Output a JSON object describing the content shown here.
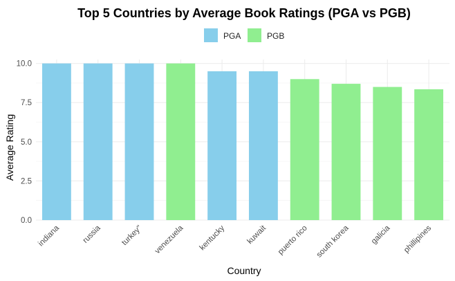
{
  "chart_data": {
    "type": "bar",
    "title": "Top 5 Countries by Average Book Ratings (PGA vs PGB)",
    "xlabel": "Country",
    "ylabel": "Average Rating",
    "ylim": [
      0,
      10.25
    ],
    "yticks": [
      "0.0",
      "2.5",
      "5.0",
      "7.5",
      "10.0"
    ],
    "ytick_values": [
      0,
      2.5,
      5,
      7.5,
      10
    ],
    "grid": true,
    "legend_position": "top",
    "legend": [
      {
        "name": "PGA",
        "color": "#87CEEB"
      },
      {
        "name": "PGB",
        "color": "#90EE90"
      }
    ],
    "categories": [
      "indiana",
      "russia",
      "turkey\"",
      "venezuela",
      "kentucky",
      "kuwait",
      "puerto rico",
      "south korea",
      "galicia",
      "phillipines"
    ],
    "values": [
      10.0,
      10.0,
      10.0,
      10.0,
      9.5,
      9.5,
      9.0,
      8.7,
      8.5,
      8.35
    ],
    "groups": [
      "PGA",
      "PGA",
      "PGA",
      "PGB",
      "PGA",
      "PGA",
      "PGB",
      "PGB",
      "PGB",
      "PGB"
    ]
  }
}
